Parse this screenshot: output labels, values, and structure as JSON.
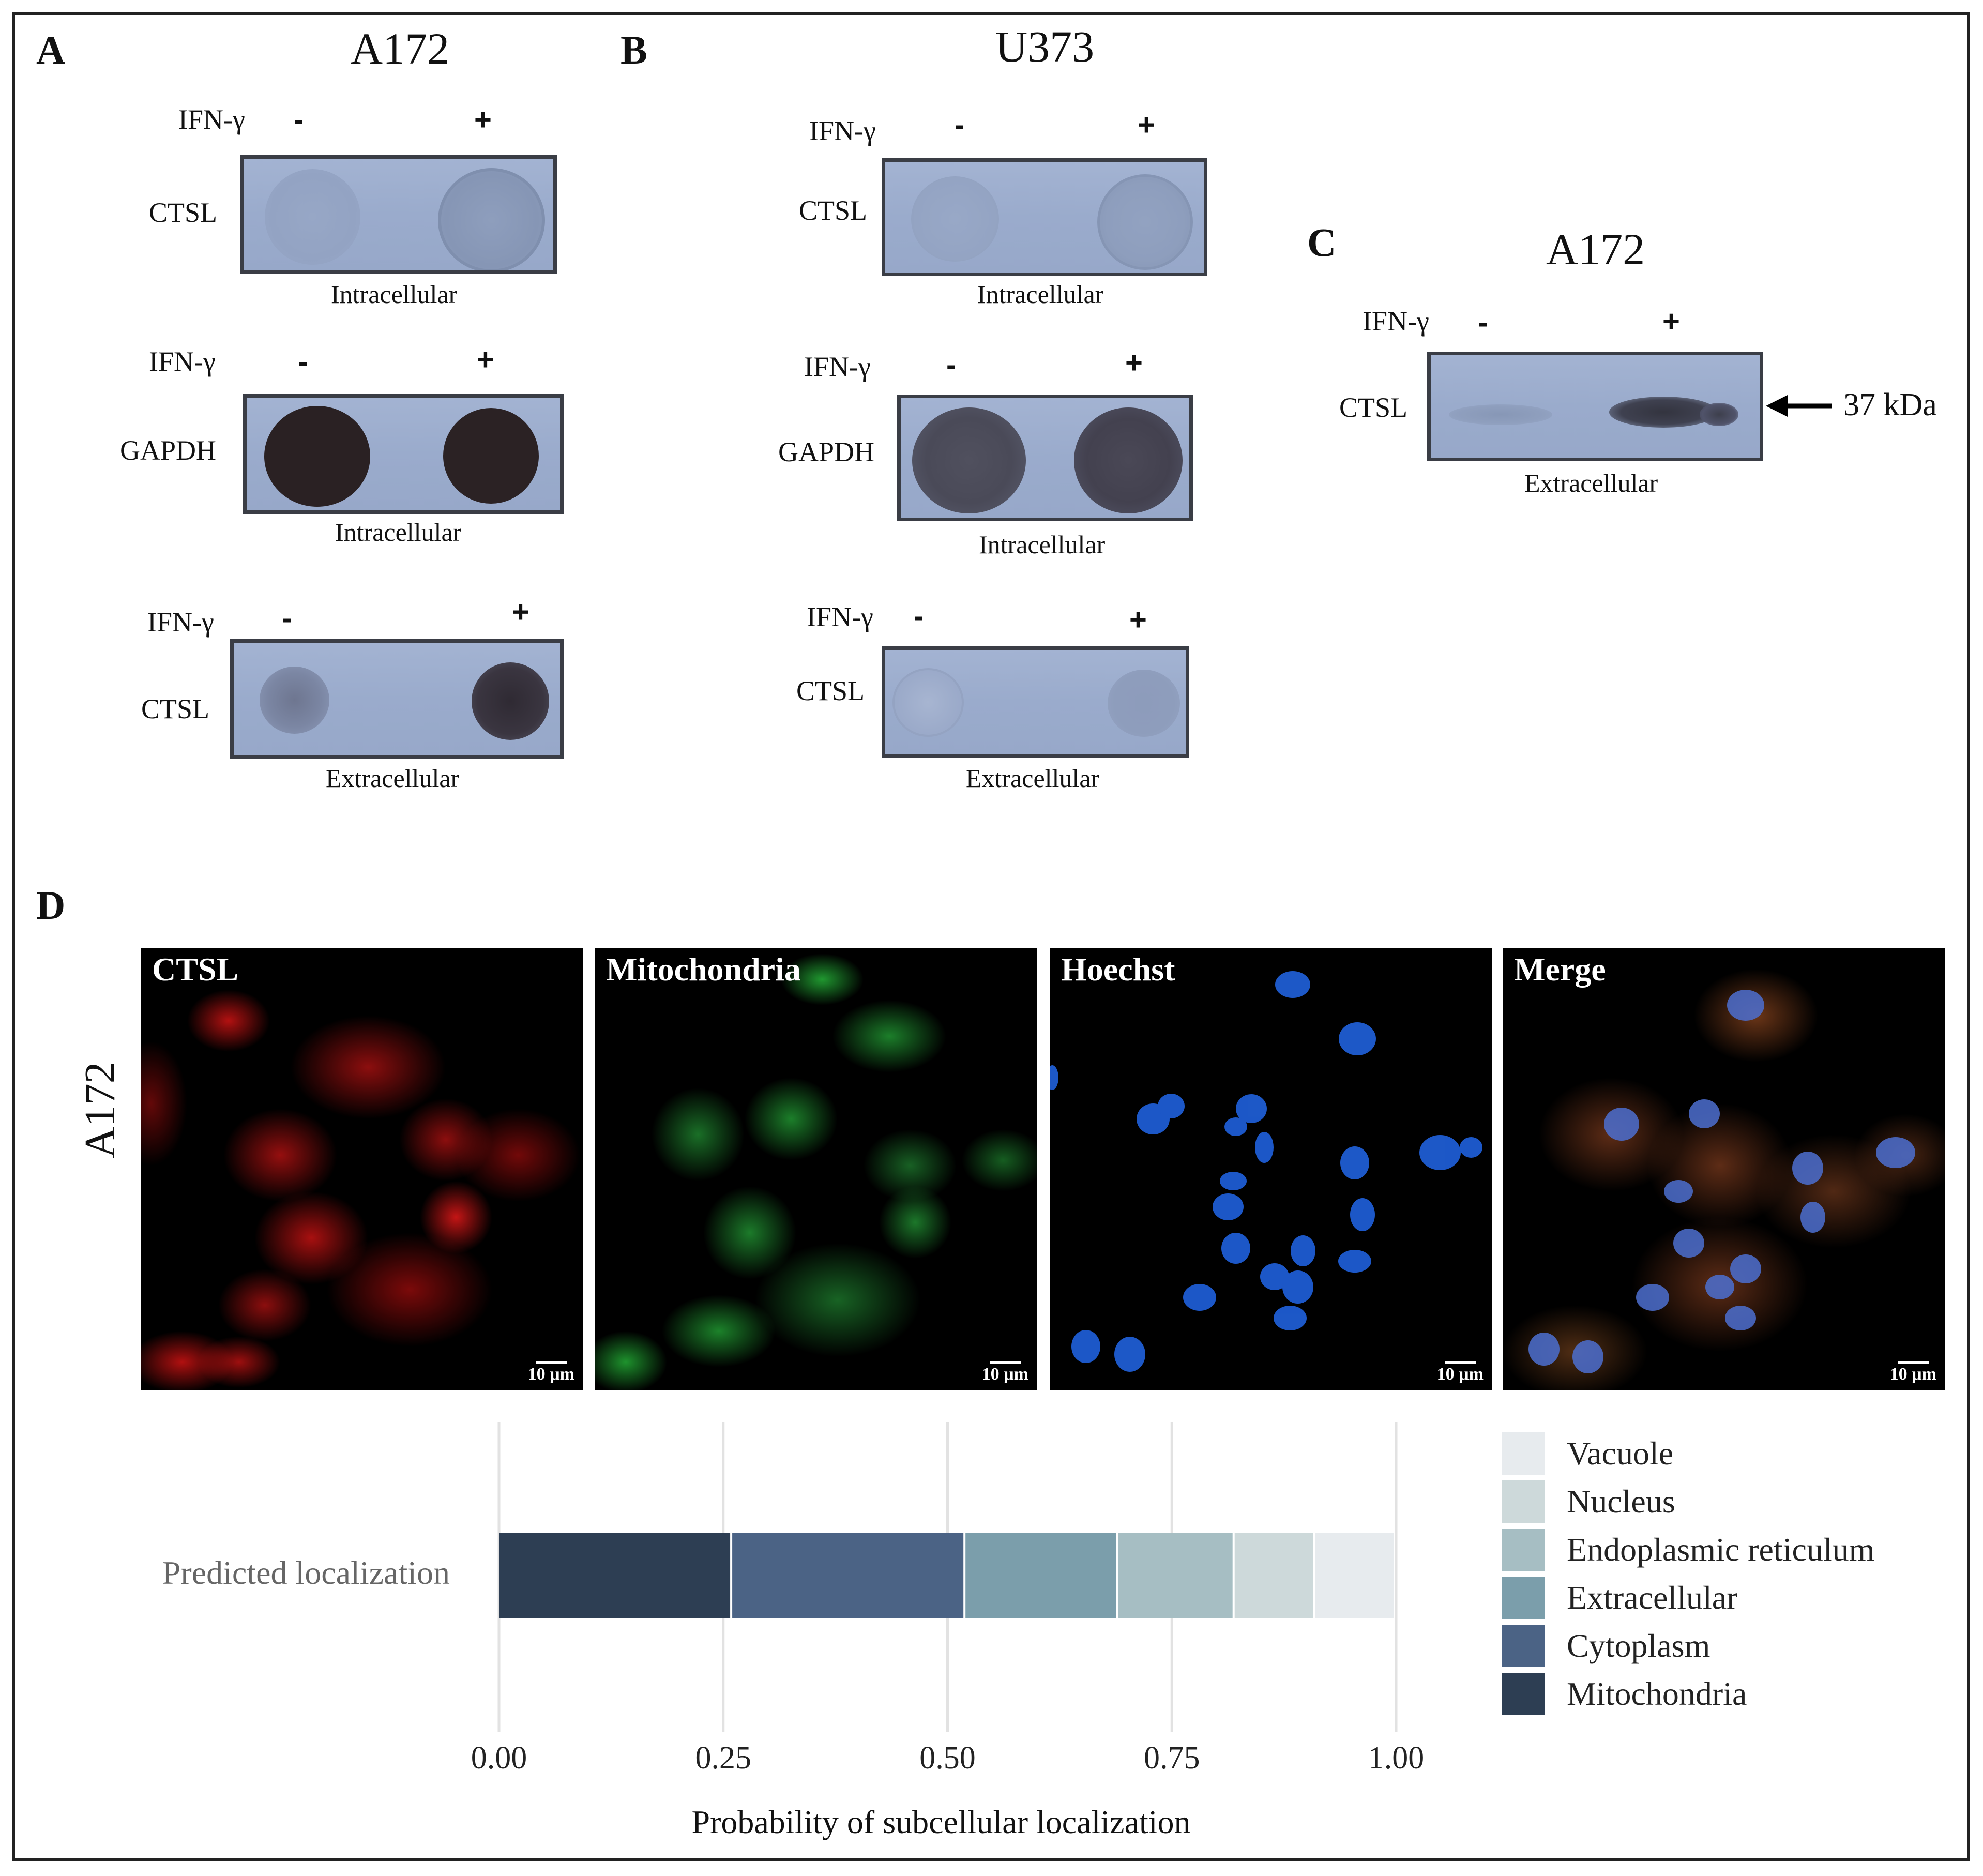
{
  "panels": {
    "A": {
      "letter": "A",
      "title": "A172",
      "blots": [
        {
          "treatment_label": "IFN-γ",
          "minus": "-",
          "plus": "+",
          "protein": "CTSL",
          "fraction": "Intracellular"
        },
        {
          "treatment_label": "IFN-γ",
          "minus": "-",
          "plus": "+",
          "protein": "GAPDH",
          "fraction": "Intracellular"
        },
        {
          "treatment_label": "IFN-γ",
          "minus": "-",
          "plus": "+",
          "protein": "CTSL",
          "fraction": "Extracellular"
        }
      ]
    },
    "B": {
      "letter": "B",
      "title": "U373",
      "blots": [
        {
          "treatment_label": "IFN-γ",
          "minus": "-",
          "plus": "+",
          "protein": "CTSL",
          "fraction": "Intracellular"
        },
        {
          "treatment_label": "IFN-γ",
          "minus": "-",
          "plus": "+",
          "protein": "GAPDH",
          "fraction": "Intracellular"
        },
        {
          "treatment_label": "IFN-γ",
          "minus": "-",
          "plus": "+",
          "protein": "CTSL",
          "fraction": "Extracellular"
        }
      ]
    },
    "C": {
      "letter": "C",
      "title": "A172",
      "treatment_label": "IFN-γ",
      "minus": "-",
      "plus": "+",
      "protein": "CTSL",
      "fraction": "Extracellular",
      "marker": "37 kDa"
    },
    "D": {
      "letter": "D",
      "row_label": "A172",
      "images": [
        {
          "title": "CTSL",
          "scale": "10 µm"
        },
        {
          "title": "Mitochondria",
          "scale": "10 µm"
        },
        {
          "title": "Hoechst",
          "scale": "10 µm"
        },
        {
          "title": "Merge",
          "scale": "10 µm"
        }
      ]
    }
  },
  "chart_data": {
    "type": "bar",
    "orientation": "horizontal",
    "stacked": true,
    "categories": [
      "Predicted localization"
    ],
    "xlabel": "Probability of subcellular localization",
    "ylabel": "",
    "xlim": [
      0,
      1
    ],
    "xticks": [
      "0.00",
      "0.25",
      "0.50",
      "0.75",
      "1.00"
    ],
    "grid": true,
    "legend_position": "right",
    "series": [
      {
        "name": "Mitochondria",
        "values": [
          0.26
        ],
        "color": "#2d3e53"
      },
      {
        "name": "Cytoplasm",
        "values": [
          0.26
        ],
        "color": "#4b6385"
      },
      {
        "name": "Extracellular",
        "values": [
          0.17
        ],
        "color": "#7b9eab"
      },
      {
        "name": "Endoplasmic reticulum",
        "values": [
          0.13
        ],
        "color": "#a6bec3"
      },
      {
        "name": "Nucleus",
        "values": [
          0.09
        ],
        "color": "#cdd9da"
      },
      {
        "name": "Vacuole",
        "values": [
          0.09
        ],
        "color": "#e7ebee"
      }
    ]
  }
}
